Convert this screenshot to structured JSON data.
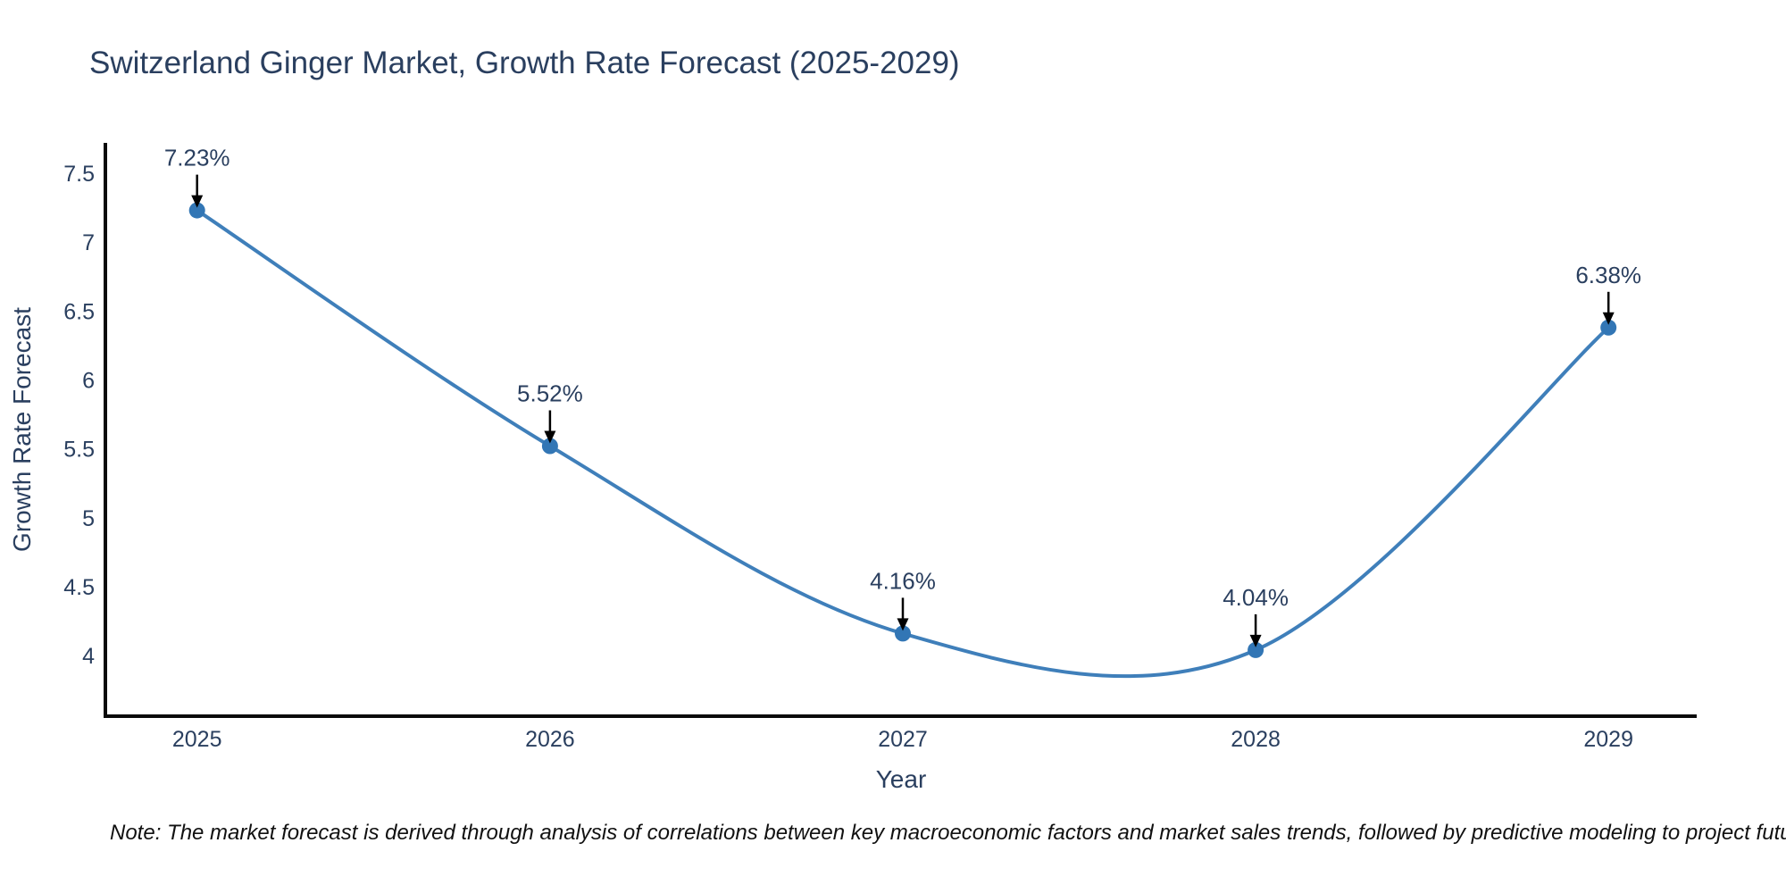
{
  "title": "Switzerland Ginger Market, Growth Rate Forecast (2025-2029)",
  "note": "Note: The market forecast is derived through analysis of correlations between key macroeconomic factors and market sales trends, followed by predictive modeling to project future sales",
  "colors": {
    "background": "#ffffff",
    "line": "#3f7fba",
    "marker": "#3276b5",
    "axis": "#0a0a0a",
    "text": "#2a3f5f",
    "arrow": "#000000",
    "note_text": "#111111"
  },
  "chart_data": {
    "type": "line",
    "title": "Switzerland Ginger Market, Growth Rate Forecast (2025-2029)",
    "xlabel": "Year",
    "ylabel": "Growth Rate Forecast",
    "x": [
      2025,
      2026,
      2027,
      2028,
      2029
    ],
    "values": [
      7.23,
      5.52,
      4.16,
      4.04,
      6.38
    ],
    "labels": [
      "7.23%",
      "5.52%",
      "4.16%",
      "4.04%",
      "6.38%"
    ],
    "yticks": [
      4,
      4.5,
      5,
      5.5,
      6,
      6.5,
      7,
      7.5
    ],
    "ytick_labels": [
      "4",
      "4.5",
      "5",
      "5.5",
      "6",
      "6.5",
      "7",
      "7.5"
    ],
    "xtick_labels": [
      "2025",
      "2026",
      "2027",
      "2028",
      "2029"
    ],
    "xlim": [
      2024.74,
      2029.25
    ],
    "ylim": [
      3.56,
      7.72
    ],
    "grid": false,
    "legend": "none",
    "line_shape": "spline",
    "markers": true,
    "annotation_arrows": "down"
  }
}
